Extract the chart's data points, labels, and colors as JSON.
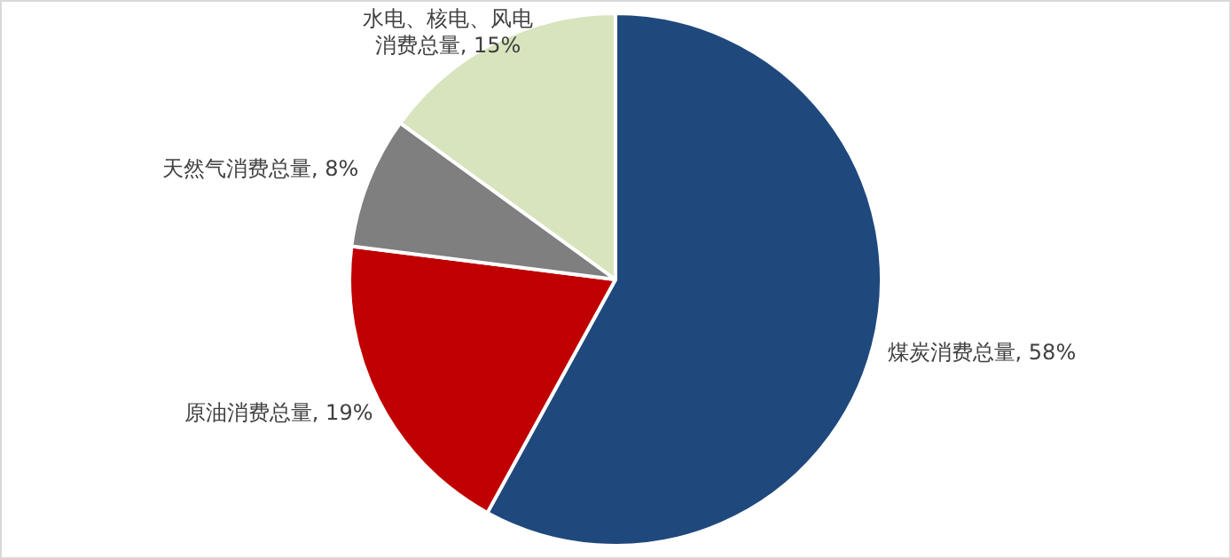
{
  "chart_data": {
    "type": "pie",
    "categories": [
      "煤炭消费总量",
      "原油消费总量",
      "天然气消费总量",
      "水电、核电、风电消费总量"
    ],
    "values": [
      58,
      19,
      8,
      15
    ],
    "value_labels": [
      "58%",
      "19%",
      "8%",
      "15%"
    ],
    "colors": [
      "#1f497d",
      "#c00000",
      "#7f7f7f",
      "#d7e4bd"
    ],
    "legend": false
  }
}
